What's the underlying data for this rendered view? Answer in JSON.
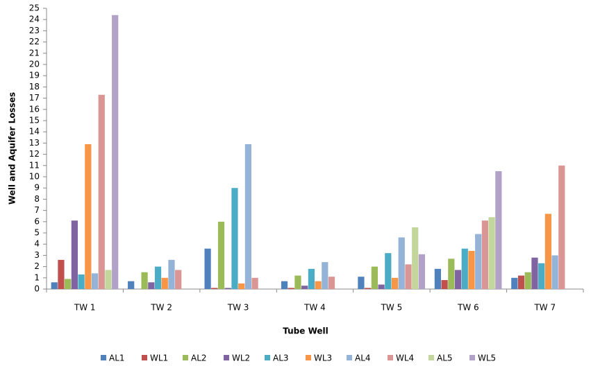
{
  "chart_data": {
    "type": "bar",
    "x_label": "Tube Well",
    "y_label": "Well and Aquifer Losses",
    "categories": [
      "TW 1",
      "TW 2",
      "TW 3",
      "TW 4",
      "TW 5",
      "TW 6",
      "TW 7"
    ],
    "series": [
      {
        "name": "AL1",
        "color": "#4f81bd",
        "values": [
          0.6,
          0.7,
          3.6,
          0.7,
          1.1,
          1.8,
          1.0
        ]
      },
      {
        "name": "WL1",
        "color": "#c0504d",
        "values": [
          2.6,
          0,
          0.1,
          0.1,
          0.1,
          0.8,
          1.2
        ]
      },
      {
        "name": "AL2",
        "color": "#9bbb59",
        "values": [
          0.9,
          1.5,
          6.0,
          1.2,
          2.0,
          2.7,
          1.5
        ]
      },
      {
        "name": "WL2",
        "color": "#8064a2",
        "values": [
          6.1,
          0.6,
          0.1,
          0.3,
          0.4,
          1.7,
          2.8
        ]
      },
      {
        "name": "AL3",
        "color": "#4bacc6",
        "values": [
          1.3,
          2.0,
          9.0,
          1.8,
          3.2,
          3.6,
          2.3
        ]
      },
      {
        "name": "WL3",
        "color": "#f79646",
        "values": [
          12.9,
          1.0,
          0.5,
          0.7,
          1.0,
          3.4,
          6.7
        ]
      },
      {
        "name": "AL4",
        "color": "#95b3d7",
        "values": [
          1.4,
          2.6,
          12.9,
          2.4,
          4.6,
          4.9,
          3.0
        ]
      },
      {
        "name": "WL4",
        "color": "#d99694",
        "values": [
          17.3,
          1.7,
          1.0,
          1.1,
          2.2,
          6.1,
          11.0
        ]
      },
      {
        "name": "AL5",
        "color": "#c3d69b",
        "values": [
          1.7,
          0,
          0,
          0,
          5.5,
          6.4,
          0
        ]
      },
      {
        "name": "WL5",
        "color": "#b3a2c7",
        "values": [
          24.4,
          0,
          0,
          0,
          3.1,
          10.5,
          0
        ]
      }
    ],
    "ylim": [
      0,
      25
    ],
    "yticks": [
      0,
      1,
      2,
      3,
      4,
      5,
      6,
      7,
      8,
      9,
      10,
      11,
      12,
      13,
      14,
      15,
      16,
      17,
      18,
      19,
      20,
      21,
      22,
      23,
      24,
      25
    ],
    "grid": false,
    "legend": "bottom"
  }
}
